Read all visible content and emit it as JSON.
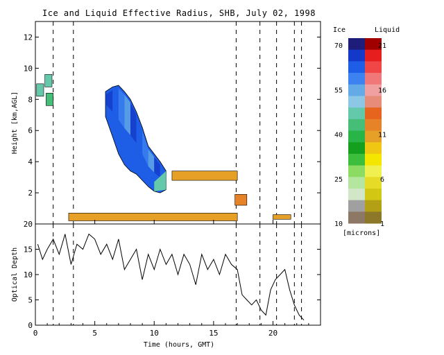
{
  "chart_data": [
    {
      "type": "heatmap",
      "title": "Ice and Liquid Effective Radius, SHB, July 02, 1998",
      "ylabel": "Height [km,AGL]",
      "xlim": [
        0,
        24
      ],
      "ylim": [
        0,
        13
      ],
      "y_ticks": [
        "2",
        "4",
        "6",
        "8",
        "10",
        "12"
      ],
      "colorbar": {
        "ice_label": "Ice",
        "liquid_label": "Liquid",
        "unit_label": "[microns]",
        "ice_ticks": [
          "70",
          "55",
          "40",
          "25",
          "10"
        ],
        "liquid_ticks": [
          "21",
          "16",
          "11",
          "6",
          "1"
        ],
        "ice_colors": [
          "#1e1e7a",
          "#1438c8",
          "#1e5ee6",
          "#3c82f0",
          "#64aae6",
          "#8cc8e6",
          "#64c8aa",
          "#46be78",
          "#28b446",
          "#14a01e",
          "#3cbe3c",
          "#8cdc64",
          "#b4e6a0",
          "#d2e6c8",
          "#a0a0a0",
          "#8c7864"
        ],
        "liquid_colors": [
          "#a00000",
          "#e61e1e",
          "#f04646",
          "#f07878",
          "#f0a0a0",
          "#e68c78",
          "#e6641e",
          "#e68228",
          "#e6a028",
          "#f0c814",
          "#f5e600",
          "#f0f050",
          "#e6dc28",
          "#d2c814",
          "#b4a014",
          "#8c7828"
        ]
      },
      "ice_cloud_height_km": [
        {
          "t": 5.9,
          "bottom": 6.9,
          "top": 8.5
        },
        {
          "t": 6.5,
          "bottom": 5.6,
          "top": 8.8
        },
        {
          "t": 7.0,
          "bottom": 4.5,
          "top": 8.9
        },
        {
          "t": 7.5,
          "bottom": 3.8,
          "top": 8.5
        },
        {
          "t": 8.0,
          "bottom": 3.4,
          "top": 8.0
        },
        {
          "t": 8.5,
          "bottom": 3.2,
          "top": 7.2
        },
        {
          "t": 9.0,
          "bottom": 2.8,
          "top": 6.2
        },
        {
          "t": 9.5,
          "bottom": 2.4,
          "top": 5.0
        },
        {
          "t": 10.0,
          "bottom": 2.1,
          "top": 4.5
        },
        {
          "t": 10.5,
          "bottom": 2.0,
          "top": 4.0
        },
        {
          "t": 11.0,
          "bottom": 2.2,
          "top": 3.4
        }
      ],
      "liquid_layers": [
        {
          "t_start": 2.8,
          "t_end": 17.0,
          "bottom_km": 0.2,
          "top_km": 0.7,
          "color": "#e6a028"
        },
        {
          "t_start": 11.5,
          "t_end": 17.0,
          "bottom_km": 2.8,
          "top_km": 3.4,
          "color": "#e6a028"
        },
        {
          "t_start": 16.8,
          "t_end": 17.8,
          "bottom_km": 1.2,
          "top_km": 1.9,
          "color": "#e68228"
        },
        {
          "t_start": 20.0,
          "t_end": 21.5,
          "bottom_km": 0.3,
          "top_km": 0.6,
          "color": "#e6a028"
        }
      ]
    },
    {
      "type": "line",
      "xlabel": "Time (hours, GMT)",
      "ylabel": "Optical Depth",
      "xlim": [
        0,
        24
      ],
      "ylim": [
        0,
        20
      ],
      "x_ticks": [
        "0",
        "5",
        "10",
        "15",
        "20"
      ],
      "y_ticks": [
        "0",
        "5",
        "10",
        "15",
        "20"
      ],
      "series": [
        {
          "x": [
            0.2,
            0.6,
            1.0,
            1.5,
            2.0,
            2.5,
            3.0,
            3.5,
            4.0,
            4.5,
            5.0,
            5.5,
            6.0,
            6.5,
            7.0,
            7.5,
            8.0,
            8.5,
            9.0,
            9.5,
            10.0,
            10.5,
            11.0,
            11.5,
            12.0,
            12.5,
            13.0,
            13.5,
            14.0,
            14.5,
            15.0,
            15.5,
            16.0,
            16.5,
            17.0,
            17.4,
            17.8,
            18.2,
            18.6,
            19.0,
            19.4,
            19.8,
            20.2,
            20.6,
            21.0,
            21.4,
            21.8,
            22.2,
            22.6
          ],
          "y": [
            16,
            13,
            15,
            17,
            14,
            18,
            12,
            16,
            15,
            18,
            17,
            14,
            16,
            13,
            17,
            11,
            13,
            15,
            9,
            14,
            11,
            15,
            12,
            14,
            10,
            14,
            12,
            8,
            14,
            11,
            13,
            10,
            14,
            12,
            11,
            6,
            5,
            4,
            5,
            3,
            2,
            7,
            9,
            10,
            11,
            7,
            4,
            2,
            1
          ]
        }
      ]
    }
  ]
}
